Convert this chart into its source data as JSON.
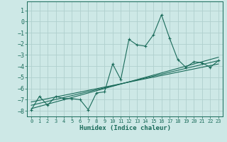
{
  "xlabel": "Humidex (Indice chaleur)",
  "ylabel": "",
  "bg_color": "#cde8e6",
  "grid_color": "#b0d0ce",
  "line_color": "#1a6b5a",
  "xlim": [
    -0.5,
    23.5
  ],
  "ylim": [
    -8.5,
    1.8
  ],
  "yticks": [
    1,
    0,
    -1,
    -2,
    -3,
    -4,
    -5,
    -6,
    -7,
    -8
  ],
  "xticks": [
    0,
    1,
    2,
    3,
    4,
    5,
    6,
    7,
    8,
    9,
    10,
    11,
    12,
    13,
    14,
    15,
    16,
    17,
    18,
    19,
    20,
    21,
    22,
    23
  ],
  "main_x": [
    0,
    1,
    2,
    3,
    4,
    5,
    6,
    7,
    8,
    9,
    10,
    11,
    12,
    13,
    14,
    15,
    16,
    17,
    18,
    19,
    20,
    21,
    22,
    23
  ],
  "main_y": [
    -7.9,
    -6.7,
    -7.5,
    -6.7,
    -6.9,
    -6.9,
    -7.0,
    -7.9,
    -6.4,
    -6.3,
    -3.8,
    -5.2,
    -1.6,
    -2.1,
    -2.2,
    -1.2,
    0.6,
    -1.5,
    -3.4,
    -4.1,
    -3.6,
    -3.7,
    -4.1,
    -3.5
  ],
  "line2_x": [
    0,
    23
  ],
  "line2_y": [
    -7.8,
    -3.2
  ],
  "line3_x": [
    0,
    23
  ],
  "line3_y": [
    -7.5,
    -3.5
  ],
  "line4_x": [
    0,
    23
  ],
  "line4_y": [
    -7.2,
    -3.8
  ]
}
